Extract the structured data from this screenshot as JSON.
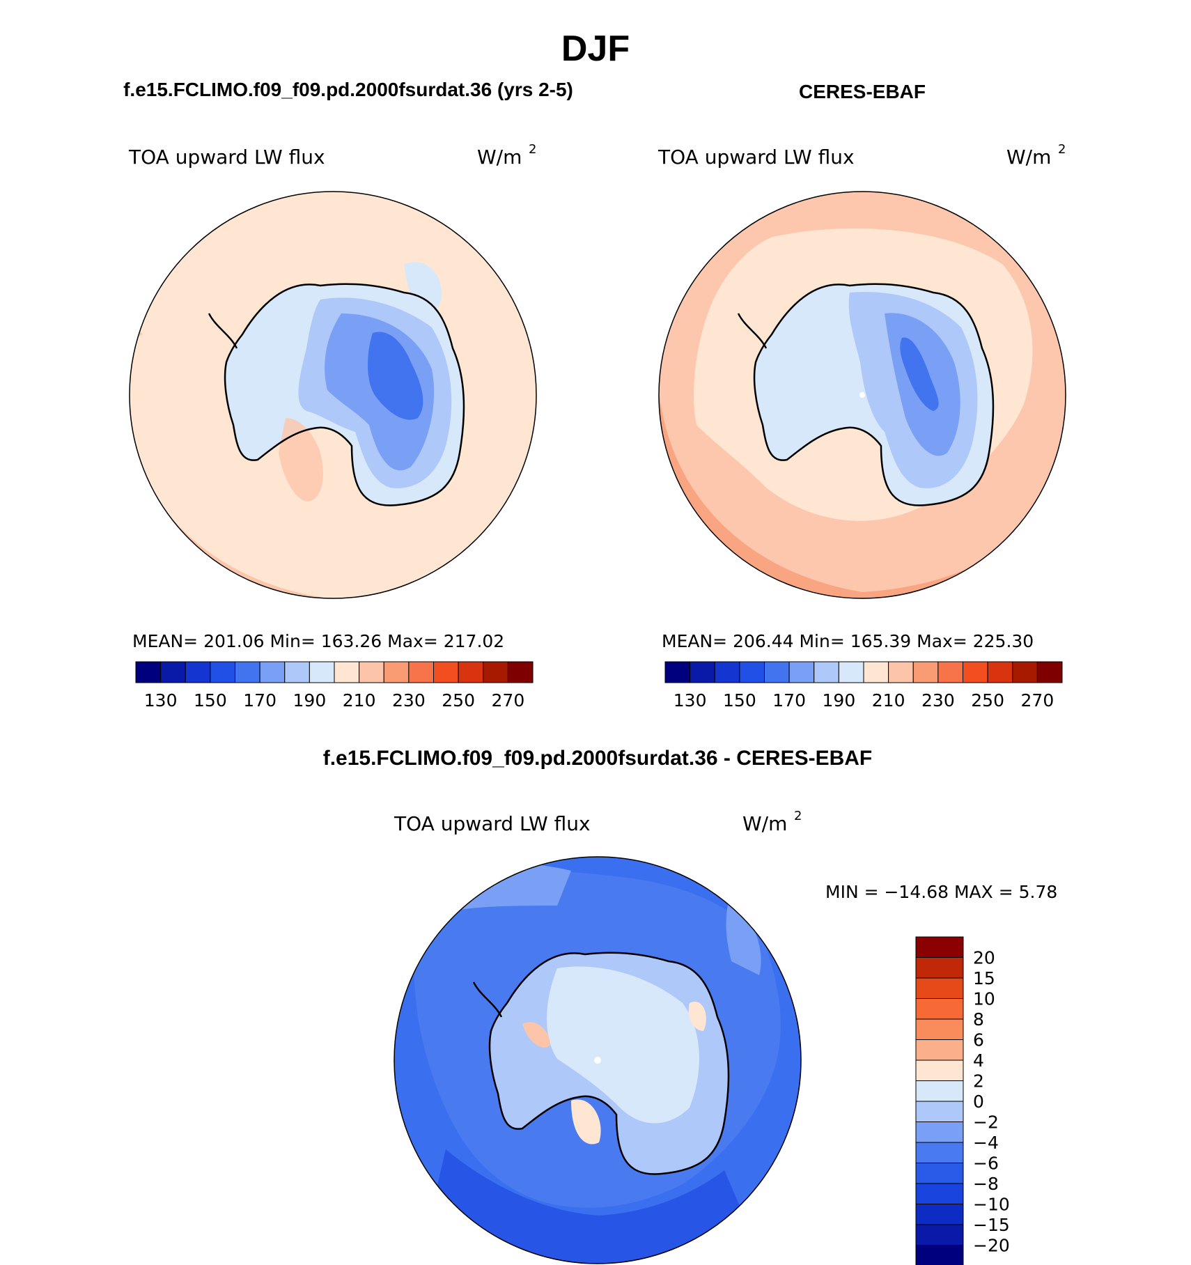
{
  "figure": {
    "title": "DJF"
  },
  "panels": [
    {
      "title": "f.e15.FCLIMO.f09_f09.pd.2000fsurdat.36 (yrs 2-5)",
      "variable": "TOA upward LW flux",
      "units": "W/m",
      "units_exp": "2",
      "stats": "MEAN= 201.06   Min= 163.26   Max= 217.02",
      "ocean_color": "#fee6d3",
      "outer_band_color": "#fcc5aa"
    },
    {
      "title": "CERES-EBAF",
      "variable": "TOA upward LW flux",
      "units": "W/m",
      "units_exp": "2",
      "stats": "MEAN= 206.44   Min= 165.39   Max= 225.30",
      "ocean_color": "#fcc7ad",
      "outer_band_color": "#f9a582"
    },
    {
      "title": "f.e15.FCLIMO.f09_f09.pd.2000fsurdat.36 - CERES-EBAF",
      "variable": "TOA upward LW flux",
      "units": "W/m",
      "units_exp": "2",
      "stats": "MIN = −14.68 MAX =    5.78",
      "ocean_color": "#3a6ff0"
    }
  ],
  "colorbar_abs": {
    "colors": [
      "#00007f",
      "#0a1aa8",
      "#1435d0",
      "#2050e6",
      "#4274f0",
      "#7aa0f6",
      "#aec8fa",
      "#d8e8fb",
      "#fee6d3",
      "#fcc5aa",
      "#f99c73",
      "#f7744a",
      "#f24e20",
      "#d83410",
      "#a81a00",
      "#7f0000"
    ],
    "tick_labels": [
      "130",
      "150",
      "170",
      "190",
      "210",
      "230",
      "250",
      "270"
    ]
  },
  "colorbar_diff": {
    "colors": [
      "#00007f",
      "#0a1aa8",
      "#0d2cc4",
      "#1a44de",
      "#2a5ae8",
      "#4a7af0",
      "#7aa0f6",
      "#aec8fa",
      "#d8e8fb",
      "#fee6d3",
      "#fcb08a",
      "#f98c5a",
      "#f76a35",
      "#e64a18",
      "#c02808",
      "#8b0000"
    ],
    "labels": [
      "20",
      "15",
      "10",
      "8",
      "6",
      "4",
      "2",
      "0",
      "−2",
      "−4",
      "−6",
      "−8",
      "−10",
      "−15",
      "−20"
    ]
  }
}
